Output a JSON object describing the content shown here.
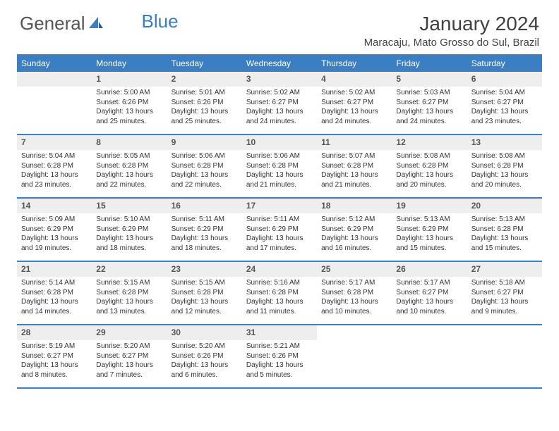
{
  "logo": {
    "part1": "General",
    "part2": "Blue"
  },
  "title": "January 2024",
  "location": "Maracaju, Mato Grosso do Sul, Brazil",
  "colors": {
    "accent": "#3a7ec4",
    "header_bg": "#3a7ec4",
    "header_text": "#ffffff",
    "daynum_bg": "#eeeeee",
    "daynum_text": "#555555",
    "body_text": "#333333",
    "page_bg": "#ffffff"
  },
  "weekdays": [
    "Sunday",
    "Monday",
    "Tuesday",
    "Wednesday",
    "Thursday",
    "Friday",
    "Saturday"
  ],
  "weeks": [
    [
      {
        "day": "",
        "sunrise": "",
        "sunset": "",
        "dl1": "",
        "dl2": "",
        "empty": true
      },
      {
        "day": "1",
        "sunrise": "Sunrise: 5:00 AM",
        "sunset": "Sunset: 6:26 PM",
        "dl1": "Daylight: 13 hours",
        "dl2": "and 25 minutes."
      },
      {
        "day": "2",
        "sunrise": "Sunrise: 5:01 AM",
        "sunset": "Sunset: 6:26 PM",
        "dl1": "Daylight: 13 hours",
        "dl2": "and 25 minutes."
      },
      {
        "day": "3",
        "sunrise": "Sunrise: 5:02 AM",
        "sunset": "Sunset: 6:27 PM",
        "dl1": "Daylight: 13 hours",
        "dl2": "and 24 minutes."
      },
      {
        "day": "4",
        "sunrise": "Sunrise: 5:02 AM",
        "sunset": "Sunset: 6:27 PM",
        "dl1": "Daylight: 13 hours",
        "dl2": "and 24 minutes."
      },
      {
        "day": "5",
        "sunrise": "Sunrise: 5:03 AM",
        "sunset": "Sunset: 6:27 PM",
        "dl1": "Daylight: 13 hours",
        "dl2": "and 24 minutes."
      },
      {
        "day": "6",
        "sunrise": "Sunrise: 5:04 AM",
        "sunset": "Sunset: 6:27 PM",
        "dl1": "Daylight: 13 hours",
        "dl2": "and 23 minutes."
      }
    ],
    [
      {
        "day": "7",
        "sunrise": "Sunrise: 5:04 AM",
        "sunset": "Sunset: 6:28 PM",
        "dl1": "Daylight: 13 hours",
        "dl2": "and 23 minutes."
      },
      {
        "day": "8",
        "sunrise": "Sunrise: 5:05 AM",
        "sunset": "Sunset: 6:28 PM",
        "dl1": "Daylight: 13 hours",
        "dl2": "and 22 minutes."
      },
      {
        "day": "9",
        "sunrise": "Sunrise: 5:06 AM",
        "sunset": "Sunset: 6:28 PM",
        "dl1": "Daylight: 13 hours",
        "dl2": "and 22 minutes."
      },
      {
        "day": "10",
        "sunrise": "Sunrise: 5:06 AM",
        "sunset": "Sunset: 6:28 PM",
        "dl1": "Daylight: 13 hours",
        "dl2": "and 21 minutes."
      },
      {
        "day": "11",
        "sunrise": "Sunrise: 5:07 AM",
        "sunset": "Sunset: 6:28 PM",
        "dl1": "Daylight: 13 hours",
        "dl2": "and 21 minutes."
      },
      {
        "day": "12",
        "sunrise": "Sunrise: 5:08 AM",
        "sunset": "Sunset: 6:28 PM",
        "dl1": "Daylight: 13 hours",
        "dl2": "and 20 minutes."
      },
      {
        "day": "13",
        "sunrise": "Sunrise: 5:08 AM",
        "sunset": "Sunset: 6:28 PM",
        "dl1": "Daylight: 13 hours",
        "dl2": "and 20 minutes."
      }
    ],
    [
      {
        "day": "14",
        "sunrise": "Sunrise: 5:09 AM",
        "sunset": "Sunset: 6:29 PM",
        "dl1": "Daylight: 13 hours",
        "dl2": "and 19 minutes."
      },
      {
        "day": "15",
        "sunrise": "Sunrise: 5:10 AM",
        "sunset": "Sunset: 6:29 PM",
        "dl1": "Daylight: 13 hours",
        "dl2": "and 18 minutes."
      },
      {
        "day": "16",
        "sunrise": "Sunrise: 5:11 AM",
        "sunset": "Sunset: 6:29 PM",
        "dl1": "Daylight: 13 hours",
        "dl2": "and 18 minutes."
      },
      {
        "day": "17",
        "sunrise": "Sunrise: 5:11 AM",
        "sunset": "Sunset: 6:29 PM",
        "dl1": "Daylight: 13 hours",
        "dl2": "and 17 minutes."
      },
      {
        "day": "18",
        "sunrise": "Sunrise: 5:12 AM",
        "sunset": "Sunset: 6:29 PM",
        "dl1": "Daylight: 13 hours",
        "dl2": "and 16 minutes."
      },
      {
        "day": "19",
        "sunrise": "Sunrise: 5:13 AM",
        "sunset": "Sunset: 6:29 PM",
        "dl1": "Daylight: 13 hours",
        "dl2": "and 15 minutes."
      },
      {
        "day": "20",
        "sunrise": "Sunrise: 5:13 AM",
        "sunset": "Sunset: 6:28 PM",
        "dl1": "Daylight: 13 hours",
        "dl2": "and 15 minutes."
      }
    ],
    [
      {
        "day": "21",
        "sunrise": "Sunrise: 5:14 AM",
        "sunset": "Sunset: 6:28 PM",
        "dl1": "Daylight: 13 hours",
        "dl2": "and 14 minutes."
      },
      {
        "day": "22",
        "sunrise": "Sunrise: 5:15 AM",
        "sunset": "Sunset: 6:28 PM",
        "dl1": "Daylight: 13 hours",
        "dl2": "and 13 minutes."
      },
      {
        "day": "23",
        "sunrise": "Sunrise: 5:15 AM",
        "sunset": "Sunset: 6:28 PM",
        "dl1": "Daylight: 13 hours",
        "dl2": "and 12 minutes."
      },
      {
        "day": "24",
        "sunrise": "Sunrise: 5:16 AM",
        "sunset": "Sunset: 6:28 PM",
        "dl1": "Daylight: 13 hours",
        "dl2": "and 11 minutes."
      },
      {
        "day": "25",
        "sunrise": "Sunrise: 5:17 AM",
        "sunset": "Sunset: 6:28 PM",
        "dl1": "Daylight: 13 hours",
        "dl2": "and 10 minutes."
      },
      {
        "day": "26",
        "sunrise": "Sunrise: 5:17 AM",
        "sunset": "Sunset: 6:27 PM",
        "dl1": "Daylight: 13 hours",
        "dl2": "and 10 minutes."
      },
      {
        "day": "27",
        "sunrise": "Sunrise: 5:18 AM",
        "sunset": "Sunset: 6:27 PM",
        "dl1": "Daylight: 13 hours",
        "dl2": "and 9 minutes."
      }
    ],
    [
      {
        "day": "28",
        "sunrise": "Sunrise: 5:19 AM",
        "sunset": "Sunset: 6:27 PM",
        "dl1": "Daylight: 13 hours",
        "dl2": "and 8 minutes."
      },
      {
        "day": "29",
        "sunrise": "Sunrise: 5:20 AM",
        "sunset": "Sunset: 6:27 PM",
        "dl1": "Daylight: 13 hours",
        "dl2": "and 7 minutes."
      },
      {
        "day": "30",
        "sunrise": "Sunrise: 5:20 AM",
        "sunset": "Sunset: 6:26 PM",
        "dl1": "Daylight: 13 hours",
        "dl2": "and 6 minutes."
      },
      {
        "day": "31",
        "sunrise": "Sunrise: 5:21 AM",
        "sunset": "Sunset: 6:26 PM",
        "dl1": "Daylight: 13 hours",
        "dl2": "and 5 minutes."
      },
      {
        "day": "",
        "sunrise": "",
        "sunset": "",
        "dl1": "",
        "dl2": "",
        "empty": true,
        "noheader": true
      },
      {
        "day": "",
        "sunrise": "",
        "sunset": "",
        "dl1": "",
        "dl2": "",
        "empty": true,
        "noheader": true
      },
      {
        "day": "",
        "sunrise": "",
        "sunset": "",
        "dl1": "",
        "dl2": "",
        "empty": true,
        "noheader": true
      }
    ]
  ]
}
